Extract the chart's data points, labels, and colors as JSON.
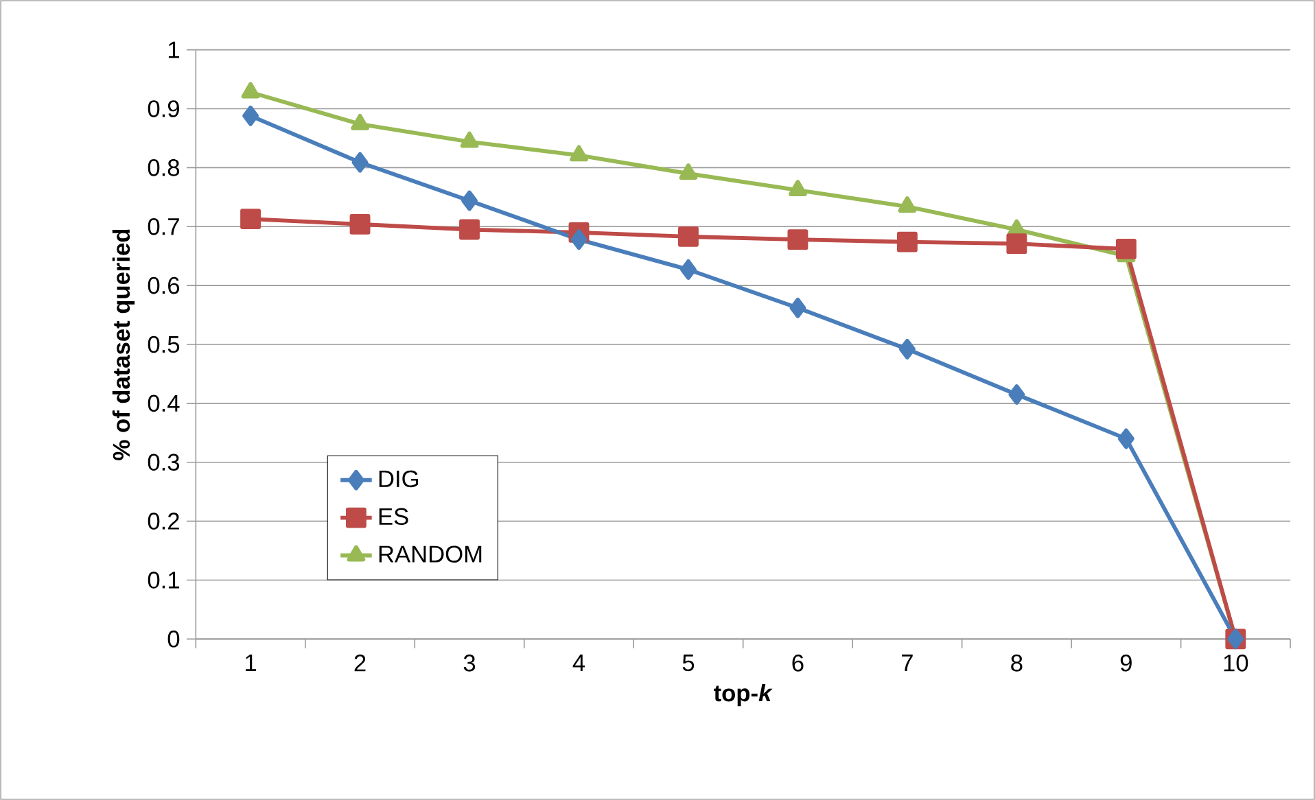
{
  "chart_data": {
    "type": "line",
    "xlabel": "top-*k*",
    "ylabel": "% of dataset queried",
    "categories": [
      "1",
      "2",
      "3",
      "4",
      "5",
      "6",
      "7",
      "8",
      "9",
      "10"
    ],
    "series": [
      {
        "name": "DIG",
        "color": "#4a7ebb",
        "marker": "diamond",
        "values": [
          0.888,
          0.809,
          0.744,
          0.678,
          0.627,
          0.562,
          0.492,
          0.415,
          0.34,
          0
        ]
      },
      {
        "name": "ES",
        "color": "#be4b48",
        "marker": "square",
        "values": [
          0.713,
          0.704,
          0.695,
          0.69,
          0.683,
          0.678,
          0.674,
          0.671,
          0.662,
          0
        ]
      },
      {
        "name": "RANDOM",
        "color": "#98b954",
        "marker": "triangle",
        "values": [
          0.928,
          0.874,
          0.844,
          0.821,
          0.79,
          0.762,
          0.734,
          0.695,
          0.65,
          0
        ]
      }
    ],
    "ylim": [
      0,
      1
    ],
    "yticks": [
      0,
      0.1,
      0.2,
      0.3,
      0.4,
      0.5,
      0.6,
      0.7,
      0.8,
      0.9,
      1
    ],
    "grid": "y",
    "legend": "bottom left",
    "line_style": "solid"
  }
}
